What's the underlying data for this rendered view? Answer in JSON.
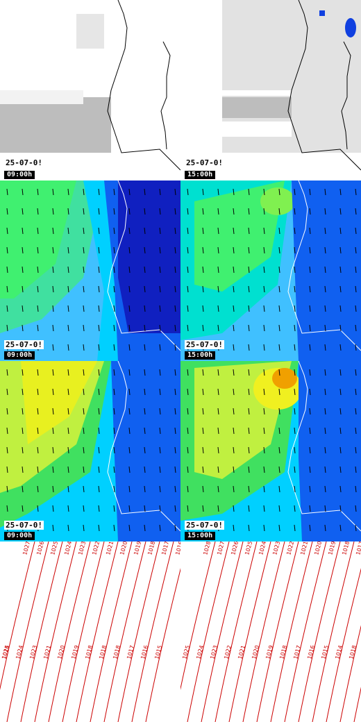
{
  "panels": [
    {
      "id": "cloud-09",
      "date": "25-07-0!",
      "time": "09:00h"
    },
    {
      "id": "cloud-15",
      "date": "25-07-0!",
      "time": "15:00h"
    },
    {
      "id": "wind1-09",
      "date": "25-07-0!",
      "time": "09:00h"
    },
    {
      "id": "wind1-15",
      "date": "25-07-0!",
      "time": "15:00h"
    },
    {
      "id": "wind2-09",
      "date": "25-07-0!",
      "time": "09:00h"
    },
    {
      "id": "wind2-15",
      "date": "25-07-0!",
      "time": "15:00h"
    }
  ],
  "pressure_left": [
    "1027",
    "1026",
    "1025",
    "1024",
    "1023",
    "1022",
    "1021",
    "1020",
    "1019",
    "1018",
    "1017",
    "1016",
    "1025",
    "1024",
    "1023",
    "1021",
    "1020",
    "1019",
    "1018",
    "1018",
    "1018",
    "1017",
    "1016",
    "1015",
    "1014"
  ],
  "pressure_right": [
    "1028",
    "1027",
    "1026",
    "1025",
    "1024",
    "1023",
    "1022",
    "1021",
    "1020",
    "1019",
    "1018",
    "1017",
    "1016",
    "1015",
    "1014",
    "1014",
    "1025",
    "1024",
    "1023",
    "1022",
    "1021",
    "1020",
    "1019",
    "1018",
    "1017",
    "1016",
    "1015",
    "1014",
    "1018",
    "1016"
  ],
  "colors": {
    "coast": "#000",
    "isobar": "#c00",
    "wind_low": "#00c0c0",
    "wind_mid": "#40e060",
    "wind_high": "#e0e020",
    "wind_peak": "#f0a000",
    "land_low": "#1020c0"
  }
}
